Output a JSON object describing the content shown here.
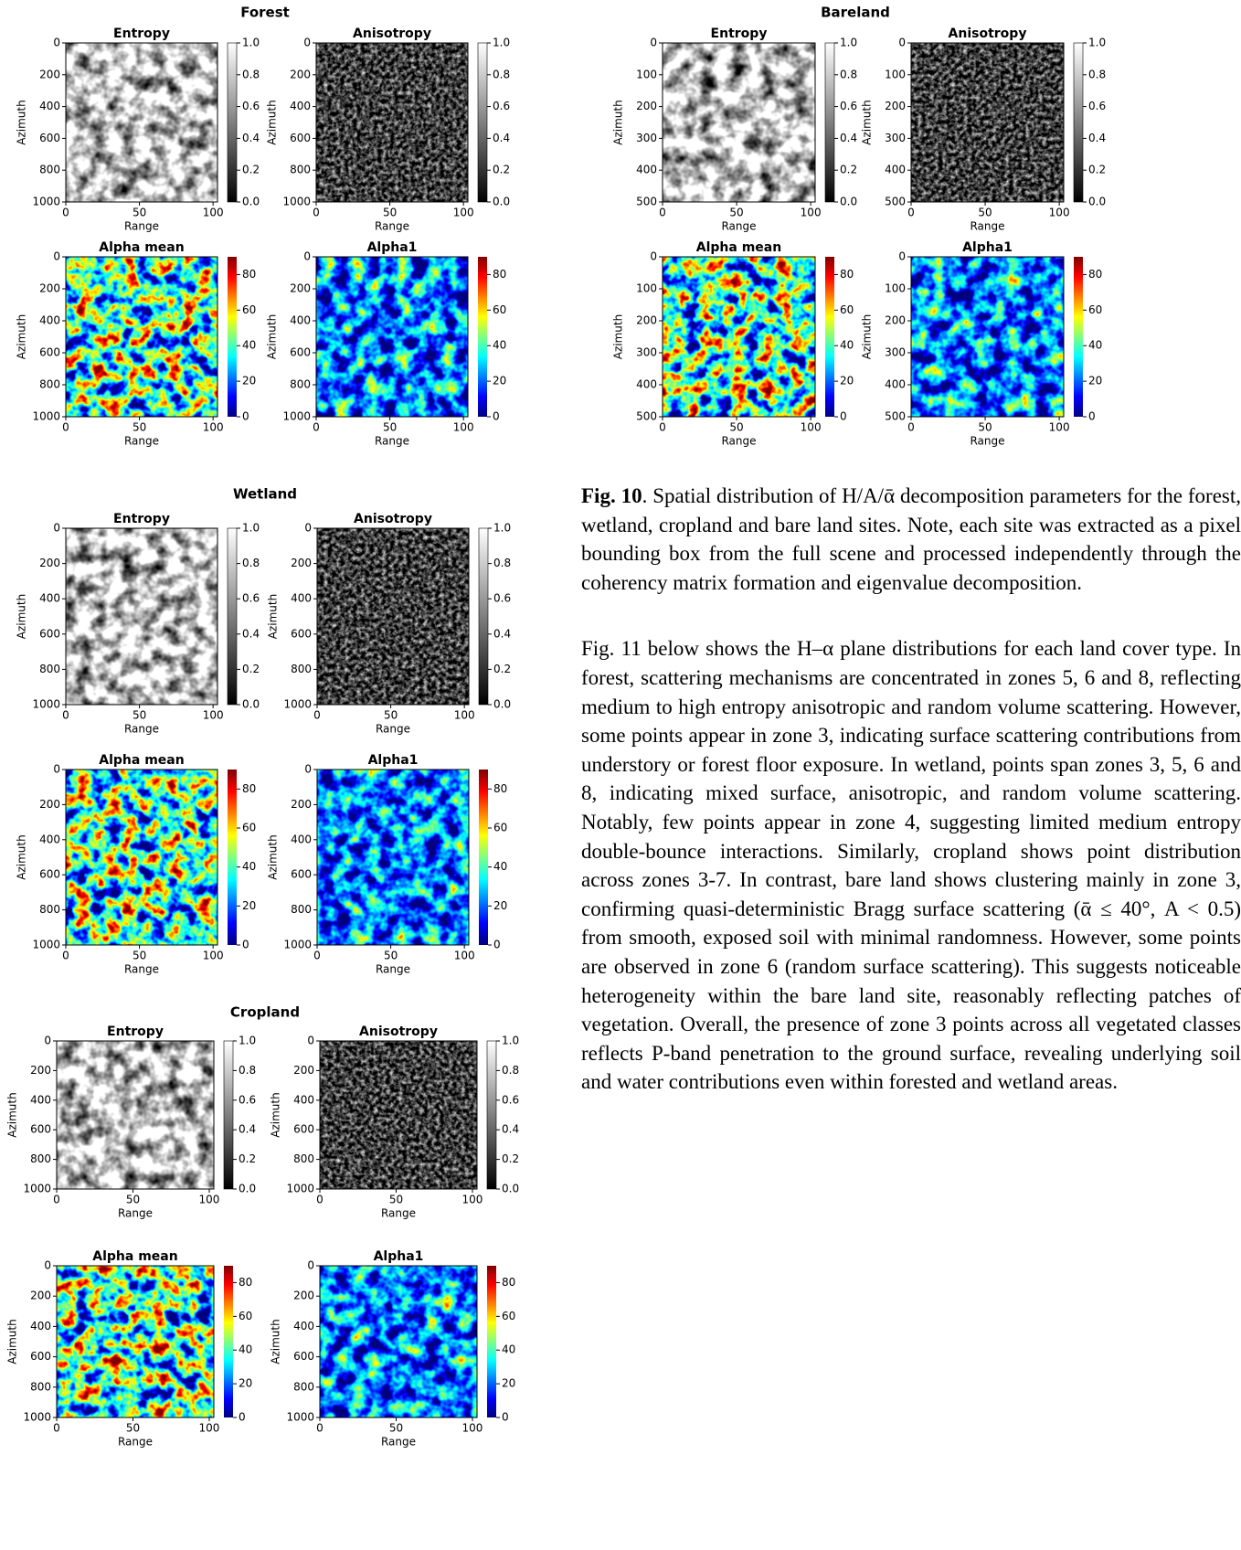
{
  "figure": {
    "sites": [
      {
        "title": "Forest",
        "xlim": [
          0,
          103
        ],
        "ylim": [
          0,
          1000
        ],
        "panels": [
          {
            "title": "Entropy",
            "colormap": "gray",
            "clim": [
              0,
              1
            ],
            "xlabel": "Range",
            "ylabel": "Azimuth",
            "xticks": [
              0,
              50,
              100
            ],
            "yticks": [
              0,
              200,
              400,
              600,
              800,
              1000
            ],
            "cbar_ticks": [
              {
                "value": 0,
                "label": "0.0"
              },
              {
                "value": 0.2,
                "label": "0.2"
              },
              {
                "value": 0.4,
                "label": "0.4"
              },
              {
                "value": 0.6,
                "label": "0.6"
              },
              {
                "value": 0.8,
                "label": "0.8"
              },
              {
                "value": 1,
                "label": "1.0"
              }
            ]
          },
          {
            "title": "Anisotropy",
            "colormap": "gray",
            "clim": [
              0,
              1
            ],
            "xlabel": "Range",
            "ylabel": "Azimuth",
            "xticks": [
              0,
              50,
              100
            ],
            "yticks": [
              0,
              200,
              400,
              600,
              800,
              1000
            ],
            "cbar_ticks": [
              {
                "value": 0,
                "label": "0.0"
              },
              {
                "value": 0.2,
                "label": "0.2"
              },
              {
                "value": 0.4,
                "label": "0.4"
              },
              {
                "value": 0.6,
                "label": "0.6"
              },
              {
                "value": 0.8,
                "label": "0.8"
              },
              {
                "value": 1,
                "label": "1.0"
              }
            ]
          },
          {
            "title": "Alpha mean",
            "colormap": "jet",
            "clim": [
              0,
              90
            ],
            "xlabel": "Range",
            "ylabel": "Azimuth",
            "xticks": [
              0,
              50,
              100
            ],
            "yticks": [
              0,
              200,
              400,
              600,
              800,
              1000
            ],
            "cbar_ticks": [
              0,
              20,
              40,
              60,
              80
            ]
          },
          {
            "title": "Alpha1",
            "colormap": "jet",
            "clim": [
              0,
              90
            ],
            "xlabel": "Range",
            "ylabel": "Azimuth",
            "xticks": [
              0,
              50,
              100
            ],
            "yticks": [
              0,
              200,
              400,
              600,
              800,
              1000
            ],
            "cbar_ticks": [
              0,
              20,
              40,
              60,
              80
            ]
          }
        ]
      },
      {
        "title": "Bareland",
        "xlim": [
          0,
          103
        ],
        "ylim": [
          0,
          500
        ],
        "panels": [
          {
            "title": "Entropy",
            "colormap": "gray",
            "clim": [
              0,
              1
            ],
            "xlabel": "Range",
            "ylabel": "Azimuth",
            "xticks": [
              0,
              50,
              100
            ],
            "yticks": [
              0,
              100,
              200,
              300,
              400,
              500
            ],
            "cbar_ticks": [
              {
                "value": 0,
                "label": "0.0"
              },
              {
                "value": 0.2,
                "label": "0.2"
              },
              {
                "value": 0.4,
                "label": "0.4"
              },
              {
                "value": 0.6,
                "label": "0.6"
              },
              {
                "value": 0.8,
                "label": "0.8"
              },
              {
                "value": 1,
                "label": "1.0"
              }
            ]
          },
          {
            "title": "Anisotropy",
            "colormap": "gray",
            "clim": [
              0,
              1
            ],
            "xlabel": "Range",
            "ylabel": "Azimuth",
            "xticks": [
              0,
              50,
              100
            ],
            "yticks": [
              0,
              100,
              200,
              300,
              400,
              500
            ],
            "cbar_ticks": [
              {
                "value": 0,
                "label": "0.0"
              },
              {
                "value": 0.2,
                "label": "0.2"
              },
              {
                "value": 0.4,
                "label": "0.4"
              },
              {
                "value": 0.6,
                "label": "0.6"
              },
              {
                "value": 0.8,
                "label": "0.8"
              },
              {
                "value": 1,
                "label": "1.0"
              }
            ]
          },
          {
            "title": "Alpha mean",
            "colormap": "jet",
            "clim": [
              0,
              90
            ],
            "xlabel": "Range",
            "ylabel": "Azimuth",
            "xticks": [
              0,
              50,
              100
            ],
            "yticks": [
              0,
              100,
              200,
              300,
              400,
              500
            ],
            "cbar_ticks": [
              0,
              20,
              40,
              60,
              80
            ]
          },
          {
            "title": "Alpha1",
            "colormap": "jet",
            "clim": [
              0,
              90
            ],
            "xlabel": "Range",
            "ylabel": "Azimuth",
            "xticks": [
              0,
              50,
              100
            ],
            "yticks": [
              0,
              100,
              200,
              300,
              400,
              500
            ],
            "cbar_ticks": [
              0,
              20,
              40,
              60,
              80
            ]
          }
        ]
      },
      {
        "title": "Wetland",
        "xlim": [
          0,
          103
        ],
        "ylim": [
          0,
          1000
        ],
        "panels": [
          {
            "title": "Entropy",
            "colormap": "gray",
            "clim": [
              0,
              1
            ],
            "xlabel": "Range",
            "ylabel": "Azimuth",
            "xticks": [
              0,
              50,
              100
            ],
            "yticks": [
              0,
              200,
              400,
              600,
              800,
              1000
            ],
            "cbar_ticks": [
              {
                "value": 0,
                "label": "0.0"
              },
              {
                "value": 0.2,
                "label": "0.2"
              },
              {
                "value": 0.4,
                "label": "0.4"
              },
              {
                "value": 0.6,
                "label": "0.6"
              },
              {
                "value": 0.8,
                "label": "0.8"
              },
              {
                "value": 1,
                "label": "1.0"
              }
            ]
          },
          {
            "title": "Anisotropy",
            "colormap": "gray",
            "clim": [
              0,
              1
            ],
            "xlabel": "Range",
            "ylabel": "Azimuth",
            "xticks": [
              0,
              50,
              100
            ],
            "yticks": [
              0,
              200,
              400,
              600,
              800,
              1000
            ],
            "cbar_ticks": [
              {
                "value": 0,
                "label": "0.0"
              },
              {
                "value": 0.2,
                "label": "0.2"
              },
              {
                "value": 0.4,
                "label": "0.4"
              },
              {
                "value": 0.6,
                "label": "0.6"
              },
              {
                "value": 0.8,
                "label": "0.8"
              },
              {
                "value": 1,
                "label": "1.0"
              }
            ]
          },
          {
            "title": "Alpha mean",
            "colormap": "jet",
            "clim": [
              0,
              90
            ],
            "xlabel": "Range",
            "ylabel": "Azimuth",
            "xticks": [
              0,
              50,
              100
            ],
            "yticks": [
              0,
              200,
              400,
              600,
              800,
              1000
            ],
            "cbar_ticks": [
              0,
              20,
              40,
              60,
              80
            ]
          },
          {
            "title": "Alpha1",
            "colormap": "jet",
            "clim": [
              0,
              90
            ],
            "xlabel": "Range",
            "ylabel": "Azimuth",
            "xticks": [
              0,
              50,
              100
            ],
            "yticks": [
              0,
              200,
              400,
              600,
              800,
              1000
            ],
            "cbar_ticks": [
              0,
              20,
              40,
              60,
              80
            ]
          }
        ]
      },
      {
        "title": "Cropland",
        "xlim": [
          0,
          103
        ],
        "ylim": [
          0,
          1000
        ],
        "panels": [
          {
            "title": "Entropy",
            "colormap": "gray",
            "clim": [
              0,
              1
            ],
            "xlabel": "Range",
            "ylabel": "Azimuth",
            "xticks": [
              0,
              50,
              100
            ],
            "yticks": [
              0,
              200,
              400,
              600,
              800,
              1000
            ],
            "cbar_ticks": [
              {
                "value": 0,
                "label": "0.0"
              },
              {
                "value": 0.2,
                "label": "0.2"
              },
              {
                "value": 0.4,
                "label": "0.4"
              },
              {
                "value": 0.6,
                "label": "0.6"
              },
              {
                "value": 0.8,
                "label": "0.8"
              },
              {
                "value": 1,
                "label": "1.0"
              }
            ]
          },
          {
            "title": "Anisotropy",
            "colormap": "gray",
            "clim": [
              0,
              1
            ],
            "xlabel": "Range",
            "ylabel": "Azimuth",
            "xticks": [
              0,
              50,
              100
            ],
            "yticks": [
              0,
              200,
              400,
              600,
              800,
              1000
            ],
            "cbar_ticks": [
              {
                "value": 0,
                "label": "0.0"
              },
              {
                "value": 0.2,
                "label": "0.2"
              },
              {
                "value": 0.4,
                "label": "0.4"
              },
              {
                "value": 0.6,
                "label": "0.6"
              },
              {
                "value": 0.8,
                "label": "0.8"
              },
              {
                "value": 1,
                "label": "1.0"
              }
            ]
          },
          {
            "title": "Alpha mean",
            "colormap": "jet",
            "clim": [
              0,
              90
            ],
            "xlabel": "Range",
            "ylabel": "Azimuth",
            "xticks": [
              0,
              50,
              100
            ],
            "yticks": [
              0,
              200,
              400,
              600,
              800,
              1000
            ],
            "cbar_ticks": [
              0,
              20,
              40,
              60,
              80
            ]
          },
          {
            "title": "Alpha1",
            "colormap": "jet",
            "clim": [
              0,
              90
            ],
            "xlabel": "Range",
            "ylabel": "Azimuth",
            "xticks": [
              0,
              50,
              100
            ],
            "yticks": [
              0,
              200,
              400,
              600,
              800,
              1000
            ],
            "cbar_ticks": [
              0,
              20,
              40,
              60,
              80
            ]
          }
        ]
      }
    ]
  },
  "caption": {
    "label": "Fig. 10",
    "text": ". Spatial distribution of H/A/ᾱ decomposition parameters for the forest, wetland, cropland and bare land sites. Note, each site was extracted as a pixel bounding box from the full scene and processed independently through the coherency matrix formation and eigenvalue decomposition."
  },
  "paragraph": "Fig. 11 below shows the H–α plane distributions for each land cover type. In forest, scattering mechanisms are concentrated in zones 5, 6 and 8, reflecting medium to high entropy anisotropic and random volume scattering. However, some points appear in zone 3, indicating surface scattering contributions from understory or forest floor exposure. In wetland, points span zones 3, 5, 6 and 8, indicating mixed surface, anisotropic, and random volume scattering. Notably, few points appear in zone 4, suggesting limited medium entropy double-bounce interactions. Similarly, cropland shows point distribution across zones 3-7. In contrast, bare land shows clustering mainly in zone 3, confirming quasi-deterministic Bragg surface scattering (ᾱ ≤ 40°, A < 0.5) from smooth, exposed soil with minimal randomness. However, some points are observed in zone 6 (random surface scattering). This suggests noticeable heterogeneity within the bare land site, reasonably reflecting patches of vegetation. Overall, the presence of zone 3 points across all vegetated classes reflects P-band penetration to the ground surface, revealing underlying soil and water contributions even within forested and wetland areas."
}
